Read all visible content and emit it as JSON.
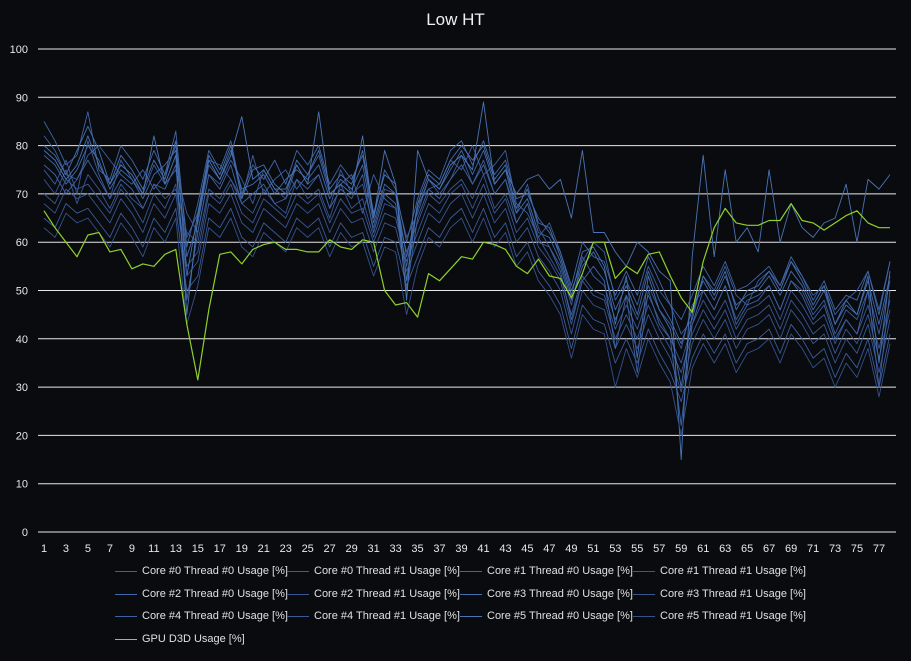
{
  "colors": {
    "background": "#0a0b0f",
    "grid": "#e8e8e8",
    "core_series": "#3c5f9e",
    "gpu_series": "#8fd12a"
  },
  "chart_data": {
    "type": "line",
    "title": "Low HT",
    "xlabel": "",
    "ylabel": "",
    "ylim": [
      0,
      100
    ],
    "yticks": [
      0,
      10,
      20,
      30,
      40,
      50,
      60,
      70,
      80,
      90,
      100
    ],
    "x_range": [
      1,
      78
    ],
    "xtick_labels": [
      "1",
      "3",
      "5",
      "7",
      "9",
      "11",
      "13",
      "15",
      "17",
      "19",
      "21",
      "23",
      "25",
      "27",
      "29",
      "31",
      "33",
      "35",
      "37",
      "39",
      "41",
      "43",
      "45",
      "47",
      "49",
      "51",
      "53",
      "55",
      "57",
      "59",
      "61",
      "63",
      "65",
      "67",
      "69",
      "71",
      "73",
      "75",
      "77"
    ],
    "grid": "horizontal",
    "legend_position": "bottom",
    "series": [
      {
        "name": "Core #0 Thread #0 Usage [%]",
        "color": "#3c5f9e",
        "values": [
          82,
          79,
          74,
          73,
          78,
          80,
          77,
          74,
          72,
          75,
          71,
          74,
          80,
          61,
          66,
          77,
          76,
          73,
          69,
          78,
          70,
          73,
          75,
          71,
          74,
          78,
          70,
          72,
          74,
          66,
          74,
          69,
          67,
          55,
          68,
          71,
          72,
          77,
          75,
          80,
          74,
          76,
          79,
          68,
          66,
          61,
          64,
          58,
          50,
          56,
          60,
          58,
          48,
          52,
          47,
          55,
          50,
          47,
          41,
          44,
          53,
          50,
          55,
          49,
          47,
          52,
          54,
          51,
          56,
          53,
          49,
          51,
          45,
          48,
          50,
          54,
          46,
          56
        ]
      },
      {
        "name": "Core #0 Thread #1 Usage [%]",
        "color": "#3a5c9a",
        "values": [
          75,
          72,
          77,
          70,
          81,
          74,
          69,
          77,
          73,
          70,
          76,
          72,
          75,
          66,
          62,
          74,
          72,
          77,
          73,
          68,
          75,
          71,
          69,
          76,
          72,
          74,
          67,
          75,
          70,
          72,
          63,
          71,
          70,
          61,
          66,
          73,
          70,
          73,
          78,
          72,
          77,
          70,
          73,
          66,
          72,
          63,
          59,
          55,
          47,
          57,
          53,
          51,
          44,
          49,
          44,
          51,
          46,
          43,
          38,
          47,
          50,
          46,
          51,
          44,
          48,
          49,
          51,
          46,
          52,
          50,
          45,
          48,
          41,
          46,
          44,
          50,
          41,
          52
        ]
      },
      {
        "name": "Core #1 Thread #0 Usage [%]",
        "color": "#4166a6",
        "values": [
          85,
          81,
          76,
          78,
          87,
          75,
          73,
          80,
          77,
          73,
          79,
          74,
          83,
          59,
          68,
          79,
          75,
          81,
          70,
          76,
          73,
          77,
          72,
          79,
          76,
          80,
          72,
          76,
          73,
          78,
          65,
          75,
          71,
          60,
          69,
          75,
          73,
          79,
          81,
          76,
          81,
          74,
          77,
          69,
          70,
          65,
          62,
          58,
          51,
          60,
          57,
          56,
          49,
          54,
          49,
          57,
          52,
          47,
          44,
          49,
          55,
          51,
          56,
          50,
          51,
          53,
          55,
          51,
          57,
          53,
          48,
          52,
          46,
          49,
          48,
          54,
          45,
          56
        ]
      },
      {
        "name": "Core #1 Thread #1 Usage [%]",
        "color": "#385894",
        "values": [
          73,
          70,
          75,
          68,
          74,
          71,
          67,
          72,
          69,
          67,
          72,
          69,
          71,
          62,
          60,
          71,
          69,
          73,
          68,
          66,
          71,
          68,
          66,
          73,
          69,
          71,
          65,
          72,
          67,
          69,
          61,
          68,
          67,
          58,
          64,
          70,
          68,
          71,
          73,
          69,
          74,
          67,
          70,
          64,
          68,
          61,
          57,
          53,
          45,
          53,
          50,
          49,
          42,
          47,
          42,
          49,
          44,
          40,
          35,
          43,
          48,
          44,
          48,
          42,
          46,
          47,
          49,
          44,
          50,
          47,
          43,
          45,
          39,
          44,
          41,
          47,
          38,
          48
        ]
      },
      {
        "name": "Core #2 Thread #0 Usage [%]",
        "color": "#4068a8",
        "values": [
          78,
          76,
          72,
          75,
          80,
          77,
          71,
          75,
          73,
          69,
          74,
          76,
          79,
          57,
          64,
          76,
          73,
          79,
          71,
          72,
          74,
          70,
          73,
          75,
          73,
          76,
          69,
          73,
          71,
          76,
          64,
          72,
          70,
          57,
          67,
          73,
          71,
          75,
          79,
          74,
          79,
          72,
          75,
          66,
          69,
          62,
          61,
          56,
          48,
          55,
          58,
          54,
          46,
          51,
          45,
          54,
          48,
          44,
          39,
          46,
          52,
          48,
          53,
          47,
          49,
          50,
          53,
          49,
          54,
          51,
          46,
          50,
          43,
          47,
          45,
          52,
          43,
          53
        ]
      },
      {
        "name": "Core #2 Thread #1 Usage [%]",
        "color": "#375792",
        "values": [
          70,
          68,
          73,
          71,
          72,
          69,
          66,
          71,
          68,
          64,
          70,
          67,
          72,
          55,
          58,
          70,
          68,
          72,
          66,
          64,
          69,
          67,
          65,
          70,
          68,
          70,
          64,
          69,
          66,
          67,
          60,
          66,
          65,
          56,
          62,
          68,
          66,
          70,
          72,
          67,
          72,
          66,
          69,
          62,
          65,
          59,
          56,
          52,
          43,
          52,
          49,
          48,
          40,
          45,
          40,
          47,
          42,
          38,
          33,
          41,
          46,
          42,
          46,
          40,
          44,
          45,
          47,
          42,
          48,
          45,
          41,
          43,
          37,
          42,
          39,
          45,
          36,
          46
        ]
      },
      {
        "name": "Core #3 Thread #0 Usage [%]",
        "color": "#4470b0",
        "values": [
          80,
          78,
          74,
          79,
          84,
          79,
          72,
          78,
          75,
          71,
          77,
          73,
          81,
          53,
          66,
          78,
          74,
          80,
          69,
          75,
          76,
          72,
          70,
          77,
          74,
          79,
          71,
          74,
          72,
          79,
          66,
          74,
          72,
          52,
          68,
          74,
          72,
          77,
          80,
          77,
          80,
          73,
          76,
          67,
          71,
          64,
          63,
          57,
          49,
          58,
          59,
          55,
          43,
          53,
          36,
          53,
          46,
          42,
          30,
          45,
          53,
          49,
          54,
          46,
          50,
          51,
          54,
          50,
          56,
          52,
          47,
          51,
          43,
          48,
          45,
          53,
          35,
          54
        ]
      },
      {
        "name": "Core #3 Thread #1 Usage [%]",
        "color": "#365690",
        "values": [
          68,
          66,
          71,
          69,
          70,
          67,
          64,
          69,
          66,
          62,
          68,
          65,
          70,
          53,
          56,
          68,
          66,
          70,
          64,
          62,
          67,
          65,
          63,
          68,
          66,
          68,
          62,
          67,
          64,
          65,
          58,
          64,
          63,
          54,
          60,
          66,
          64,
          68,
          70,
          65,
          70,
          64,
          67,
          60,
          63,
          57,
          54,
          50,
          41,
          50,
          47,
          46,
          38,
          43,
          38,
          45,
          40,
          36,
          29,
          39,
          44,
          40,
          44,
          38,
          42,
          43,
          45,
          40,
          46,
          43,
          39,
          41,
          35,
          40,
          37,
          43,
          33,
          44
        ]
      },
      {
        "name": "Core #4 Thread #0 Usage [%]",
        "color": "#3e62a2",
        "values": [
          76,
          74,
          70,
          73,
          77,
          73,
          69,
          73,
          71,
          67,
          72,
          71,
          76,
          48,
          62,
          74,
          71,
          76,
          68,
          70,
          72,
          68,
          69,
          73,
          71,
          74,
          67,
          71,
          69,
          74,
          62,
          70,
          68,
          50,
          65,
          71,
          69,
          73,
          76,
          72,
          76,
          70,
          73,
          64,
          68,
          60,
          59,
          54,
          44,
          52,
          55,
          52,
          38,
          49,
          33,
          50,
          43,
          40,
          22,
          43,
          50,
          46,
          51,
          43,
          47,
          48,
          51,
          46,
          52,
          49,
          44,
          47,
          40,
          44,
          41,
          50,
          30,
          50
        ]
      },
      {
        "name": "Core #4 Thread #1 Usage [%]",
        "color": "#3a5b98",
        "values": [
          65,
          63,
          68,
          66,
          67,
          64,
          61,
          66,
          63,
          59,
          65,
          62,
          67,
          50,
          53,
          65,
          63,
          67,
          61,
          59,
          64,
          62,
          60,
          65,
          63,
          65,
          59,
          64,
          61,
          62,
          55,
          61,
          60,
          51,
          57,
          63,
          61,
          65,
          67,
          62,
          67,
          61,
          64,
          57,
          60,
          54,
          51,
          47,
          38,
          47,
          44,
          43,
          35,
          40,
          35,
          42,
          37,
          33,
          27,
          36,
          41,
          37,
          41,
          35,
          39,
          40,
          42,
          37,
          43,
          40,
          36,
          38,
          32,
          37,
          34,
          40,
          30,
          41
        ]
      },
      {
        "name": "Core #5 Thread #0 Usage [%]",
        "color": "#4a74b4",
        "values": [
          79,
          77,
          73,
          76,
          82,
          76,
          72,
          76,
          74,
          70,
          82,
          72,
          78,
          45,
          65,
          77,
          73,
          78,
          86,
          73,
          75,
          71,
          71,
          76,
          72,
          87,
          70,
          72,
          70,
          82,
          65,
          79,
          72,
          48,
          79,
          73,
          71,
          76,
          78,
          75,
          89,
          72,
          75,
          70,
          73,
          74,
          71,
          73,
          65,
          79,
          62,
          62,
          58,
          55,
          60,
          58,
          54,
          52,
          15,
          57,
          78,
          57,
          75,
          60,
          63,
          58,
          75,
          60,
          68,
          63,
          61,
          64,
          65,
          72,
          60,
          73,
          71,
          74
        ]
      },
      {
        "name": "Core #5 Thread #1 Usage [%]",
        "color": "#33528b",
        "values": [
          63,
          61,
          66,
          64,
          65,
          62,
          59,
          64,
          61,
          57,
          63,
          60,
          65,
          43,
          51,
          63,
          61,
          65,
          59,
          57,
          62,
          60,
          58,
          63,
          61,
          63,
          57,
          62,
          59,
          60,
          53,
          59,
          58,
          45,
          55,
          61,
          59,
          63,
          65,
          60,
          65,
          59,
          62,
          55,
          58,
          52,
          49,
          45,
          36,
          45,
          42,
          41,
          30,
          38,
          32,
          40,
          35,
          31,
          20,
          34,
          39,
          35,
          39,
          33,
          37,
          38,
          40,
          35,
          41,
          38,
          34,
          36,
          30,
          35,
          32,
          38,
          28,
          39
        ]
      },
      {
        "name": "GPU D3D Usage [%]",
        "color": "#8fd12a",
        "values": [
          66.5,
          63,
          60,
          57,
          61.5,
          62,
          58,
          58.5,
          54.5,
          55.5,
          55,
          57.5,
          58.5,
          43,
          31.5,
          46,
          57.5,
          58,
          55.5,
          58.5,
          59.5,
          60,
          58.5,
          58.5,
          58,
          58,
          60.5,
          59,
          58.5,
          60.5,
          60,
          50,
          47,
          47.5,
          44.5,
          53.5,
          52,
          54.5,
          57,
          56.5,
          60,
          59.5,
          58.5,
          55,
          53.5,
          56.5,
          53,
          52.5,
          48.5,
          53.5,
          60,
          60,
          52.5,
          55,
          53.5,
          57.5,
          58,
          53,
          48.5,
          45.5,
          56,
          63,
          67,
          64,
          63.5,
          63.5,
          64.5,
          64.5,
          68,
          64.5,
          64,
          62.5,
          64,
          65.5,
          66.5,
          64,
          63,
          63
        ]
      }
    ]
  }
}
